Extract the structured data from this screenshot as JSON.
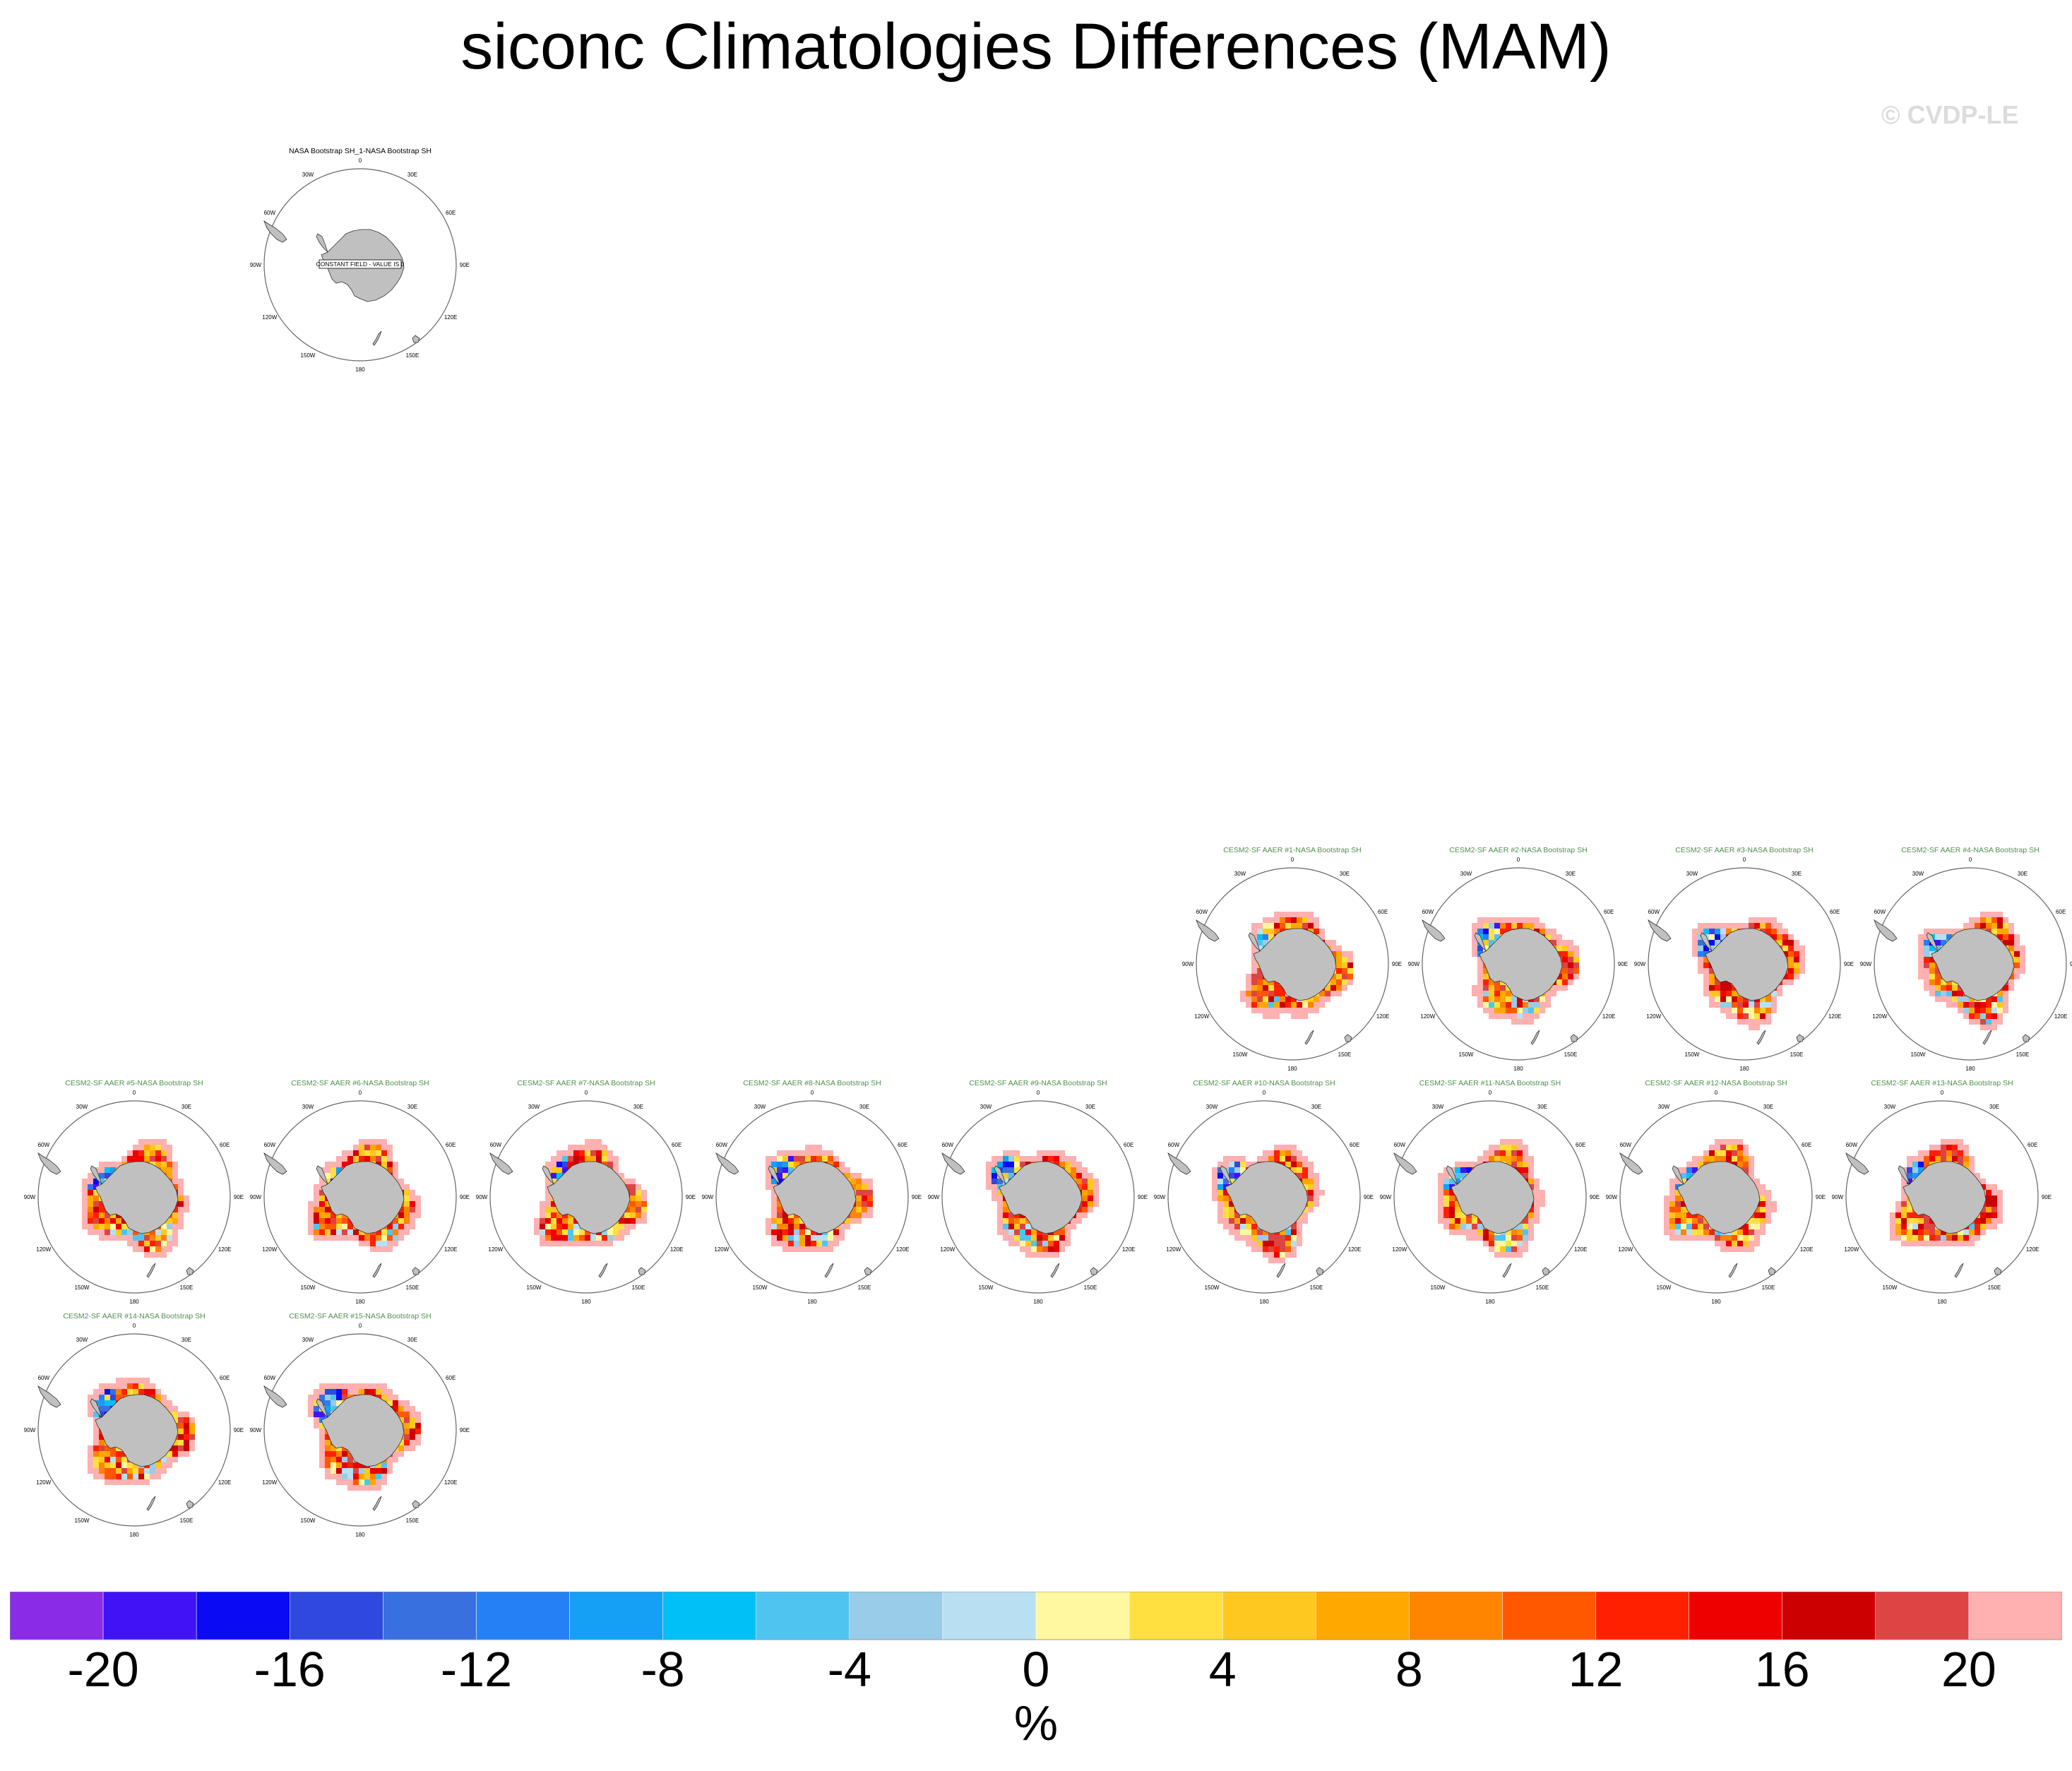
{
  "title": "siconc Climatologies Differences (MAM)",
  "watermark": "© CVDP-LE",
  "panels": [
    {
      "title": "NASA Bootstrap SH_1-NASA Bootstrap SH",
      "title_color": "#000000",
      "constant_label": "CONSTANT FIELD - VALUE IS 0",
      "has_data": false,
      "seed": 0
    },
    {
      "title": "CESM2-SF AAER #1-NASA Bootstrap SH",
      "title_color": "#4f8f4f",
      "has_data": true,
      "seed": 1
    },
    {
      "title": "CESM2-SF AAER #2-NASA Bootstrap SH",
      "title_color": "#4f8f4f",
      "has_data": true,
      "seed": 2
    },
    {
      "title": "CESM2-SF AAER #3-NASA Bootstrap SH",
      "title_color": "#4f8f4f",
      "has_data": true,
      "seed": 3
    },
    {
      "title": "CESM2-SF AAER #4-NASA Bootstrap SH",
      "title_color": "#4f8f4f",
      "has_data": true,
      "seed": 4
    },
    {
      "title": "CESM2-SF AAER #5-NASA Bootstrap SH",
      "title_color": "#4f8f4f",
      "has_data": true,
      "seed": 5
    },
    {
      "title": "CESM2-SF AAER #6-NASA Bootstrap SH",
      "title_color": "#4f8f4f",
      "has_data": true,
      "seed": 6
    },
    {
      "title": "CESM2-SF AAER #7-NASA Bootstrap SH",
      "title_color": "#4f8f4f",
      "has_data": true,
      "seed": 7
    },
    {
      "title": "CESM2-SF AAER #8-NASA Bootstrap SH",
      "title_color": "#4f8f4f",
      "has_data": true,
      "seed": 8
    },
    {
      "title": "CESM2-SF AAER #9-NASA Bootstrap SH",
      "title_color": "#4f8f4f",
      "has_data": true,
      "seed": 9
    },
    {
      "title": "CESM2-SF AAER #10-NASA Bootstrap SH",
      "title_color": "#4f8f4f",
      "has_data": true,
      "seed": 10
    },
    {
      "title": "CESM2-SF AAER #11-NASA Bootstrap SH",
      "title_color": "#4f8f4f",
      "has_data": true,
      "seed": 11
    },
    {
      "title": "CESM2-SF AAER #12-NASA Bootstrap SH",
      "title_color": "#4f8f4f",
      "has_data": true,
      "seed": 12
    },
    {
      "title": "CESM2-SF AAER #13-NASA Bootstrap SH",
      "title_color": "#4f8f4f",
      "has_data": true,
      "seed": 13
    },
    {
      "title": "CESM2-SF AAER #14-NASA Bootstrap SH",
      "title_color": "#4f8f4f",
      "has_data": true,
      "seed": 14
    },
    {
      "title": "CESM2-SF AAER #15-NASA Bootstrap SH",
      "title_color": "#4f8f4f",
      "has_data": true,
      "seed": 15
    }
  ],
  "longitude_labels": [
    "0",
    "30E",
    "60E",
    "90E",
    "120E",
    "150E",
    "180",
    "150W",
    "120W",
    "90W",
    "60W",
    "30W"
  ],
  "colors": {
    "land": "#c0c0c0",
    "missing_land_patch": "#c0c0c0",
    "circle": "#666666"
  },
  "chart_data": {
    "type": "heatmap",
    "projection": "south polar stereographic",
    "variable": "siconc",
    "season": "MAM",
    "colorbar": {
      "unit": "%",
      "levels": [
        -20,
        -18,
        -16,
        -14,
        -12,
        -10,
        -8,
        -6,
        -4,
        -2,
        0,
        2,
        4,
        6,
        8,
        10,
        12,
        14,
        16,
        18,
        20
      ],
      "tick_labels": [
        "-20",
        "-16",
        "-12",
        "-8",
        "-4",
        "0",
        "4",
        "8",
        "12",
        "16",
        "20"
      ],
      "colors": [
        "#8a2be8",
        "#4012f5",
        "#0a0af5",
        "#2e48e0",
        "#3870e0",
        "#2680f5",
        "#14a0f5",
        "#00c0f5",
        "#50c4f0",
        "#98cce8",
        "#b8e0f2",
        "#fff8a0",
        "#ffe040",
        "#ffc820",
        "#ffa800",
        "#ff8400",
        "#ff5800",
        "#ff2000",
        "#ee0000",
        "#cc0000",
        "#dd4444",
        "#ffb0b0"
      ]
    }
  }
}
